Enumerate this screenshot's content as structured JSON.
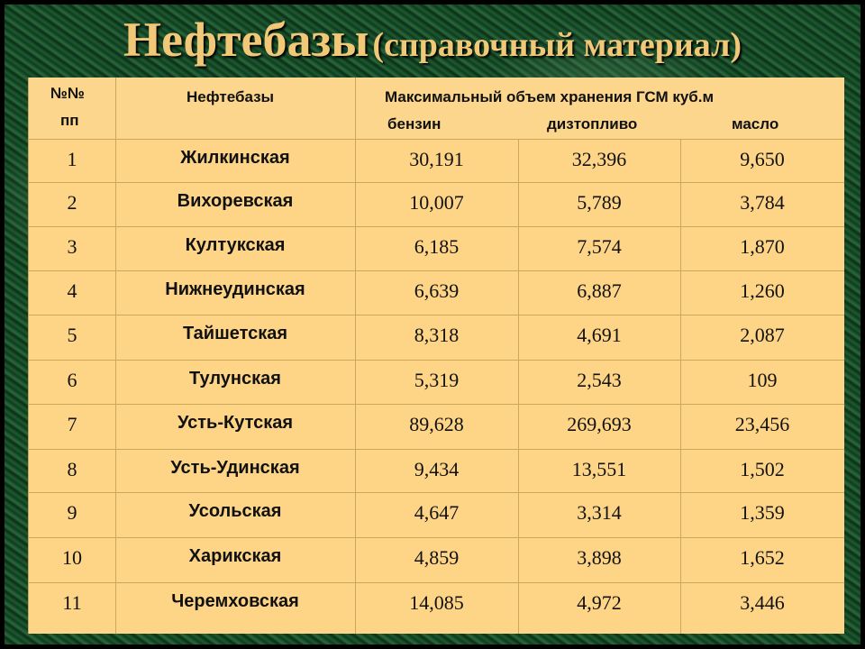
{
  "title": {
    "main": "Нефтебазы",
    "sub": "(справочный материал)"
  },
  "header": {
    "num_line1": "№№",
    "num_line2": "пп",
    "name": "Нефтебазы",
    "capacity": "Максимальный объем хранения ГСМ куб.м",
    "petrol": "бензин",
    "diesel": "дизтопливо",
    "oil": "масло"
  },
  "rows": [
    [
      "1",
      "Жилкинская",
      "30,191",
      "32,396",
      "9,650"
    ],
    [
      "2",
      "Вихоревская",
      "10,007",
      "5,789",
      "3,784"
    ],
    [
      "3",
      "Култукская",
      "6,185",
      "7,574",
      "1,870"
    ],
    [
      "4",
      "Нижнеудинская",
      "6,639",
      "6,887",
      "1,260"
    ],
    [
      "5",
      "Тайшетская",
      "8,318",
      "4,691",
      "2,087"
    ],
    [
      "6",
      "Тулунская",
      "5,319",
      "2,543",
      "109"
    ],
    [
      "7",
      "Усть-Кутская",
      "89,628",
      "269,693",
      "23,456"
    ],
    [
      "8",
      "Усть-Удинская",
      "9,434",
      "13,551",
      "1,502"
    ],
    [
      "9",
      "Усольская",
      "4,647",
      "3,314",
      "1,359"
    ],
    [
      "10",
      "Харикская",
      "4,859",
      "3,898",
      "1,652"
    ],
    [
      "11",
      "Черемховская",
      "14,085",
      "4,972",
      "3,446"
    ]
  ]
}
